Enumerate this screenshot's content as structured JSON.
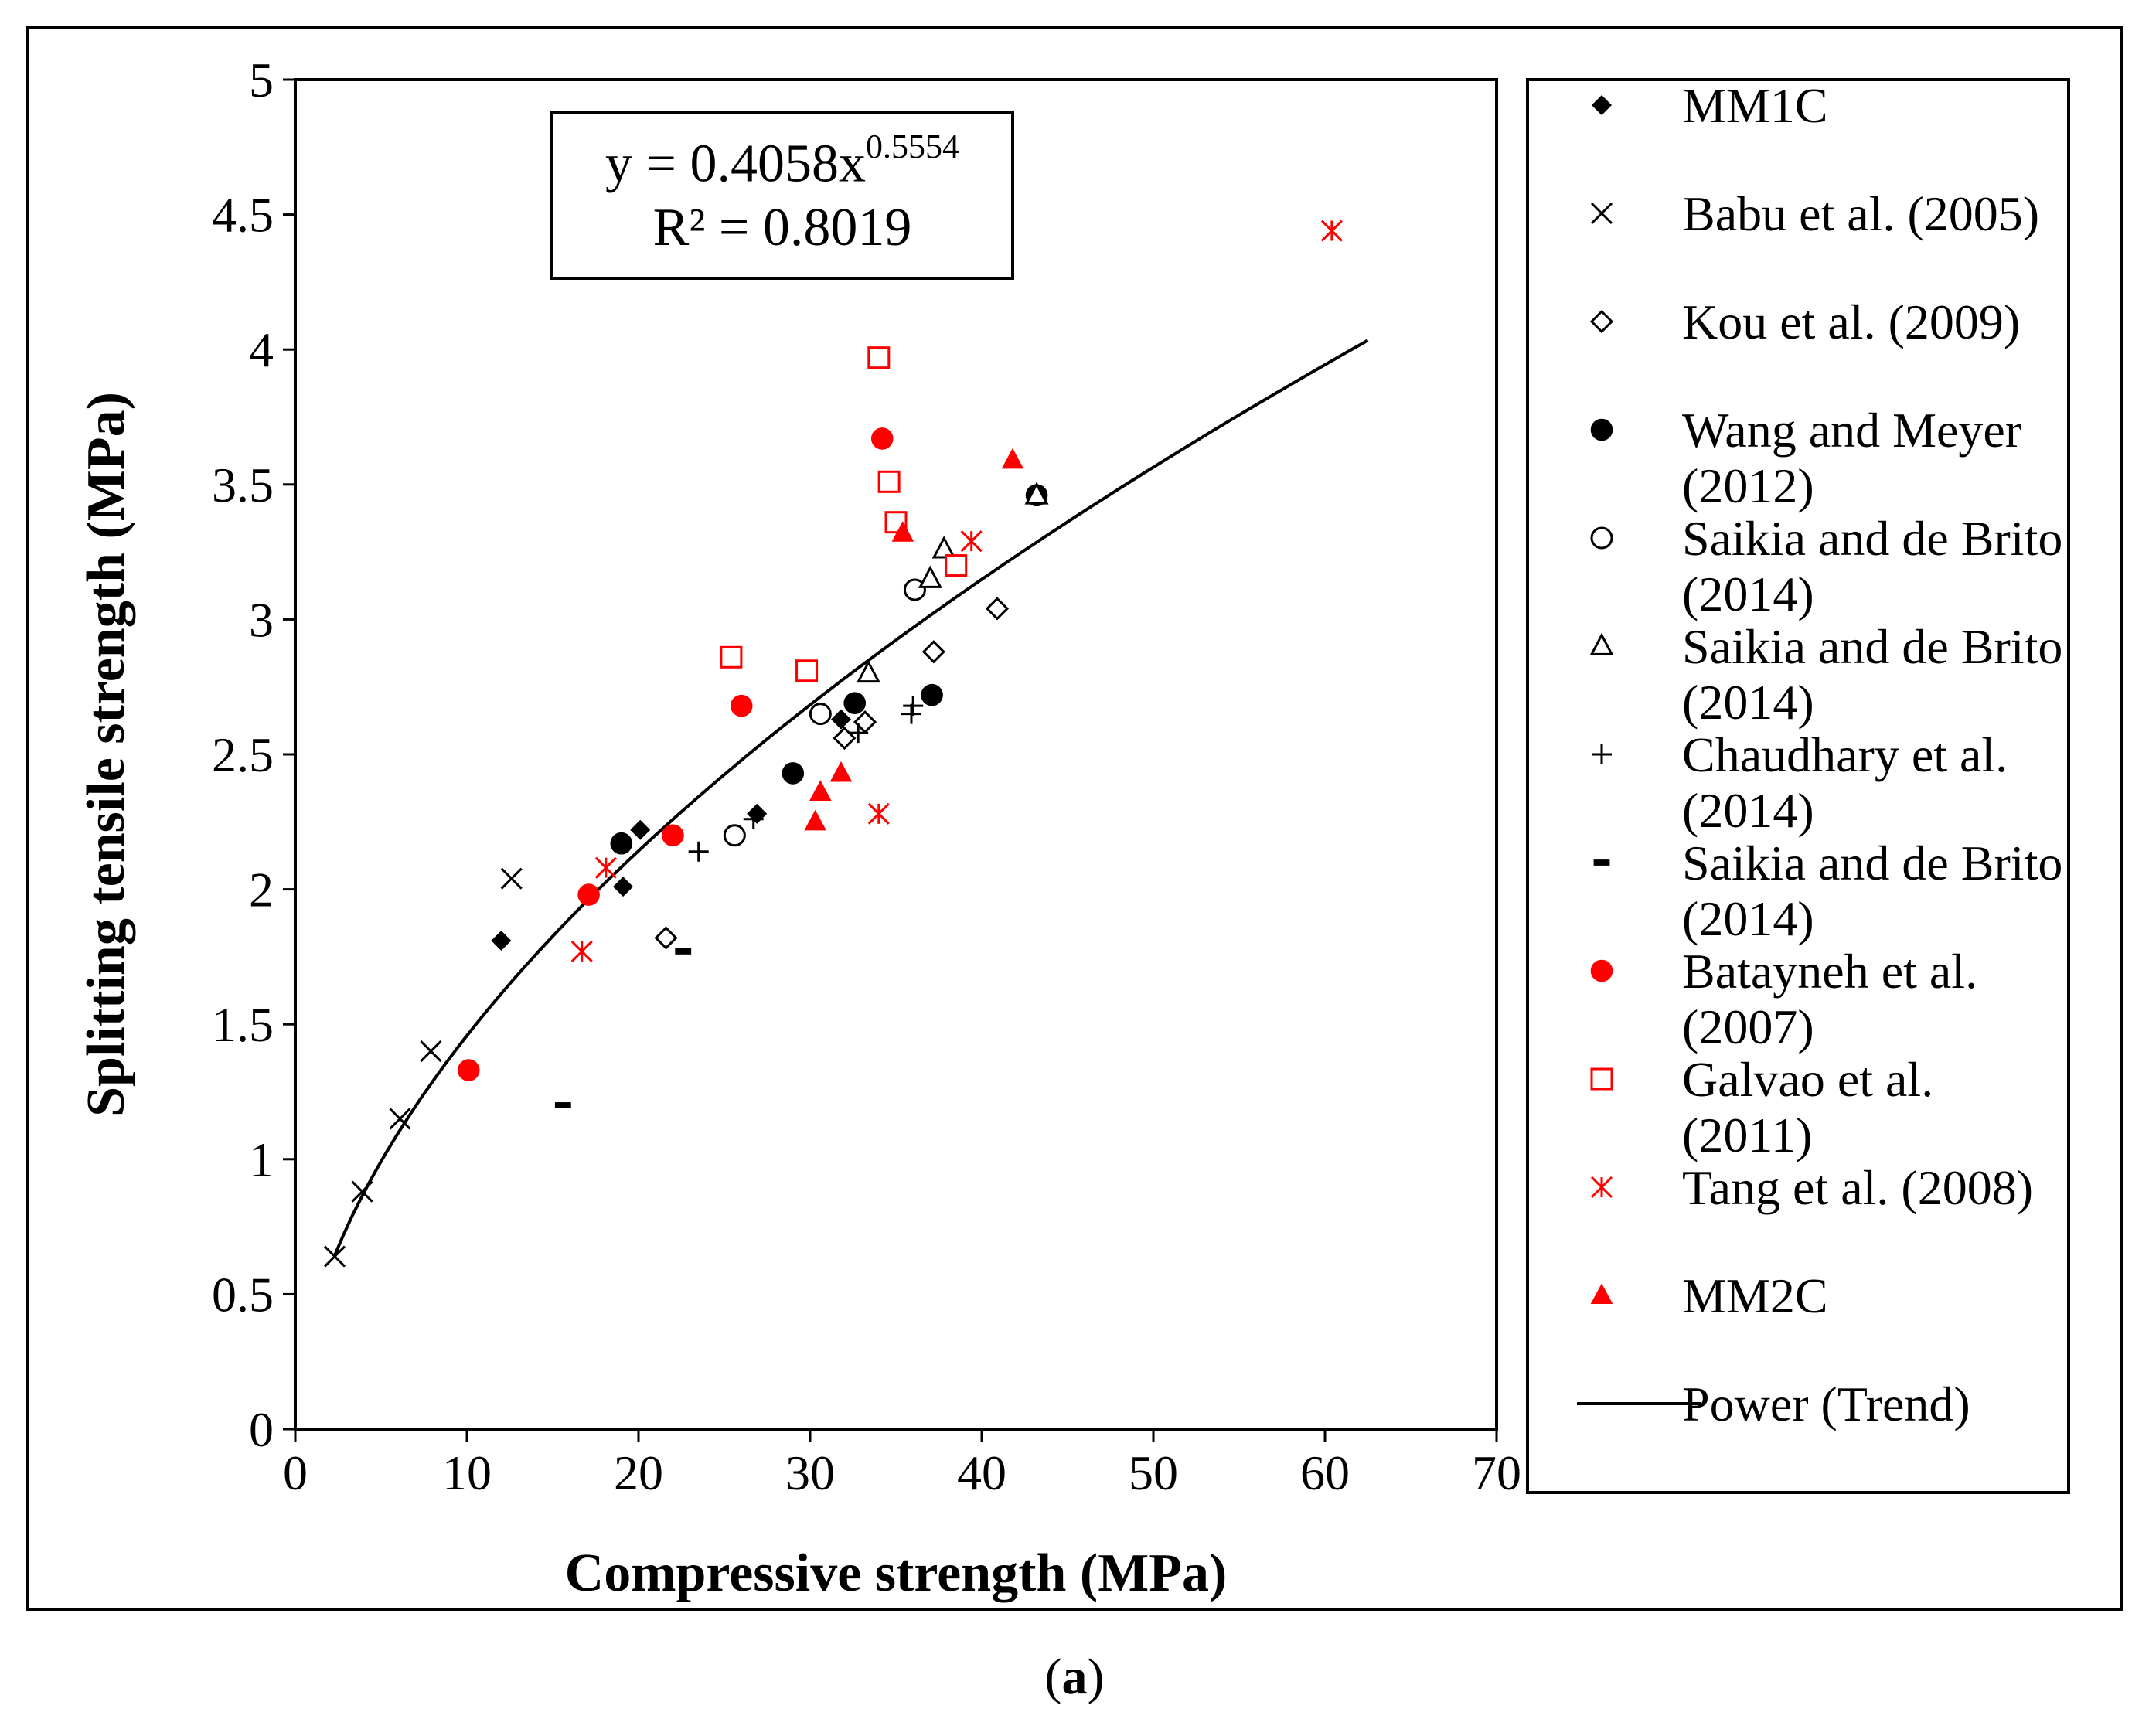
{
  "chart_data": {
    "type": "scatter",
    "xlabel": "Compressive strength (MPa)",
    "ylabel": "Splitting tensile strength (MPa)",
    "xlim": [
      0,
      70
    ],
    "ylim": [
      0,
      5
    ],
    "x_ticks": [
      "0",
      "10",
      "20",
      "30",
      "40",
      "50",
      "60",
      "70"
    ],
    "y_ticks": [
      "0",
      "0.5",
      "1",
      "1.5",
      "2",
      "2.5",
      "3",
      "3.5",
      "4",
      "4.5",
      "5"
    ],
    "grid": false,
    "legend_position": "right",
    "trendline": {
      "name": "Power (Trend)",
      "type": "power",
      "a": 0.4058,
      "b": 0.5554,
      "x_range": [
        2.3,
        62.5
      ],
      "equation_prefix": "y = 0.4058x",
      "equation_exponent": "0.5554",
      "r2_text": "R² = 0.8019"
    },
    "series": [
      {
        "name": "MM1C",
        "marker": "diamond-filled",
        "color": "#000000",
        "points": [
          [
            12.0,
            1.81
          ],
          [
            19.1,
            2.01
          ],
          [
            20.1,
            2.22
          ],
          [
            26.9,
            2.28
          ],
          [
            31.8,
            2.63
          ],
          [
            43.2,
            3.46
          ]
        ]
      },
      {
        "name": "Babu et al. (2005)",
        "marker": "x",
        "color": "#000000",
        "points": [
          [
            2.3,
            0.64
          ],
          [
            3.9,
            0.88
          ],
          [
            6.1,
            1.15
          ],
          [
            7.9,
            1.4
          ],
          [
            12.6,
            2.04
          ]
        ]
      },
      {
        "name": "Kou et al. (2009)",
        "marker": "diamond-open",
        "color": "#000000",
        "points": [
          [
            21.6,
            1.82
          ],
          [
            32.0,
            2.56
          ],
          [
            33.2,
            2.62
          ],
          [
            37.2,
            2.88
          ],
          [
            40.9,
            3.04
          ]
        ]
      },
      {
        "name": "Wang and Meyer (2012)",
        "marker": "circle-filled",
        "color": "#000000",
        "points": [
          [
            19.0,
            2.17
          ],
          [
            29.0,
            2.43
          ],
          [
            32.6,
            2.69
          ],
          [
            37.1,
            2.72
          ],
          [
            43.2,
            3.46
          ]
        ]
      },
      {
        "name": "Saikia and de Brito (2014)",
        "marker": "circle-open",
        "color": "#000000",
        "points": [
          [
            25.6,
            2.2
          ],
          [
            30.6,
            2.65
          ],
          [
            36.1,
            3.11
          ]
        ]
      },
      {
        "name": "Saikia and de Brito (2014)",
        "marker": "triangle-open",
        "color": "#000000",
        "points": [
          [
            33.4,
            2.8
          ],
          [
            37.0,
            3.15
          ],
          [
            37.8,
            3.26
          ],
          [
            43.2,
            3.46
          ]
        ]
      },
      {
        "name": "Chaudhary et al. (2014)",
        "marker": "plus",
        "color": "#000000",
        "points": [
          [
            23.5,
            2.14
          ],
          [
            26.7,
            2.26
          ],
          [
            32.8,
            2.58
          ],
          [
            35.9,
            2.65
          ],
          [
            36.0,
            2.68
          ]
        ]
      },
      {
        "name": "Saikia and de Brito (2014)",
        "marker": "dash",
        "color": "#000000",
        "points": [
          [
            15.6,
            1.2
          ],
          [
            22.6,
            1.77
          ]
        ]
      },
      {
        "name": "Batayneh et al. (2007)",
        "marker": "circle-filled",
        "color": "#ff0000",
        "points": [
          [
            10.1,
            1.33
          ],
          [
            17.1,
            1.98
          ],
          [
            22.0,
            2.2
          ],
          [
            26.0,
            2.68
          ],
          [
            34.2,
            3.67
          ]
        ]
      },
      {
        "name": "Galvao et al. (2011)",
        "marker": "square-open",
        "color": "#ff0000",
        "points": [
          [
            25.4,
            2.86
          ],
          [
            29.8,
            2.81
          ],
          [
            34.0,
            3.97
          ],
          [
            34.6,
            3.51
          ],
          [
            35.0,
            3.36
          ],
          [
            38.5,
            3.2
          ]
        ]
      },
      {
        "name": "Tang et al. (2008)",
        "marker": "asterisk",
        "color": "#ff0000",
        "points": [
          [
            16.7,
            1.77
          ],
          [
            18.1,
            2.08
          ],
          [
            34.0,
            2.28
          ],
          [
            39.4,
            3.29
          ],
          [
            60.4,
            4.44
          ]
        ]
      },
      {
        "name": "MM2C",
        "marker": "triangle-filled",
        "color": "#ff0000",
        "points": [
          [
            30.3,
            2.25
          ],
          [
            30.6,
            2.36
          ],
          [
            31.8,
            2.43
          ],
          [
            35.4,
            3.32
          ],
          [
            41.8,
            3.59
          ]
        ]
      }
    ],
    "legend_entries": [
      {
        "marker": "diamond-filled",
        "color": "#000000",
        "lines": [
          "MM1C"
        ]
      },
      {
        "marker": "x",
        "color": "#000000",
        "lines": [
          "Babu et al. (2005)"
        ]
      },
      {
        "marker": "diamond-open",
        "color": "#000000",
        "lines": [
          "Kou et al. (2009)"
        ]
      },
      {
        "marker": "circle-filled",
        "color": "#000000",
        "lines": [
          "Wang and Meyer",
          "(2012)"
        ]
      },
      {
        "marker": "circle-open",
        "color": "#000000",
        "lines": [
          "Saikia and de Brito",
          "(2014)"
        ]
      },
      {
        "marker": "triangle-open",
        "color": "#000000",
        "lines": [
          "Saikia and de Brito",
          "(2014)"
        ]
      },
      {
        "marker": "plus",
        "color": "#000000",
        "lines": [
          "Chaudhary et al.",
          "(2014)"
        ]
      },
      {
        "marker": "dash",
        "color": "#000000",
        "lines": [
          "Saikia and de Brito",
          "(2014)"
        ]
      },
      {
        "marker": "circle-filled",
        "color": "#ff0000",
        "lines": [
          "Batayneh et al.",
          "(2007)"
        ]
      },
      {
        "marker": "square-open",
        "color": "#ff0000",
        "lines": [
          "Galvao et al.",
          "(2011)"
        ]
      },
      {
        "marker": "asterisk",
        "color": "#ff0000",
        "lines": [
          "Tang et al. (2008)"
        ]
      },
      {
        "marker": "triangle-filled",
        "color": "#ff0000",
        "lines": [
          "MM2C"
        ]
      },
      {
        "marker": "line",
        "color": "#000000",
        "lines": [
          "Power (Trend)"
        ]
      }
    ]
  },
  "caption": {
    "open": "(",
    "letter": "a",
    "close": ")"
  }
}
